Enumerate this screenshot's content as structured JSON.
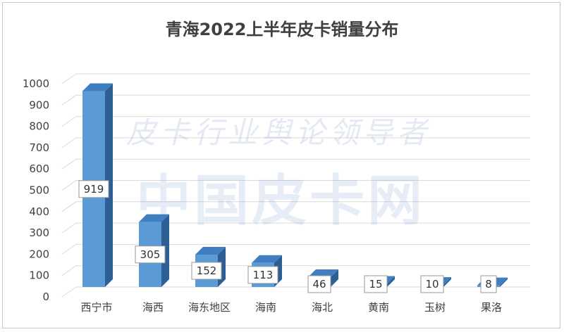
{
  "chart_data": {
    "type": "bar",
    "title": "青海2022上半年皮卡销量分布",
    "categories": [
      "西宁市",
      "海西",
      "海东地区",
      "海南",
      "海北",
      "黄南",
      "玉树",
      "果洛"
    ],
    "values": [
      919,
      305,
      152,
      113,
      46,
      15,
      10,
      8
    ],
    "ylim": [
      0,
      1000
    ],
    "yticks": [
      0,
      100,
      200,
      300,
      400,
      500,
      600,
      700,
      800,
      900,
      1000
    ],
    "grid": true,
    "bar_color": "#5b9bd5",
    "bar_side_color": "#2e5f94",
    "bar_top_color": "#3f7fc0",
    "legend": "none"
  },
  "watermark": {
    "line1": "皮卡行业舆论领导者",
    "line2": "中国皮卡网"
  }
}
